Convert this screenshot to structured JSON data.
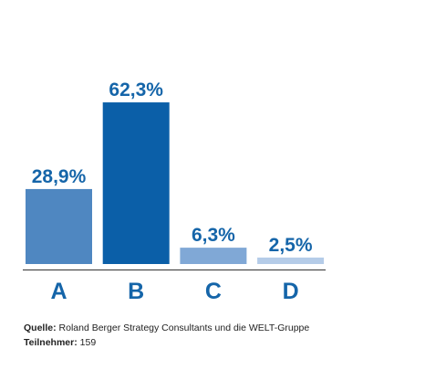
{
  "chart_data": {
    "type": "bar",
    "categories": [
      "A",
      "B",
      "C",
      "D"
    ],
    "values": [
      28.9,
      62.3,
      6.3,
      2.5
    ],
    "value_labels": [
      "28,9%",
      "62,3%",
      "6,3%",
      "2,5%"
    ],
    "colors": [
      "#4f87c1",
      "#0b5fa8",
      "#80a8d6",
      "#b5cce8"
    ],
    "source": {
      "label": "Quelle:",
      "text": "Roland Berger Strategy Consultants und die WELT-Gruppe"
    },
    "participants": {
      "label": "Teilnehmer:",
      "value": 159
    }
  }
}
